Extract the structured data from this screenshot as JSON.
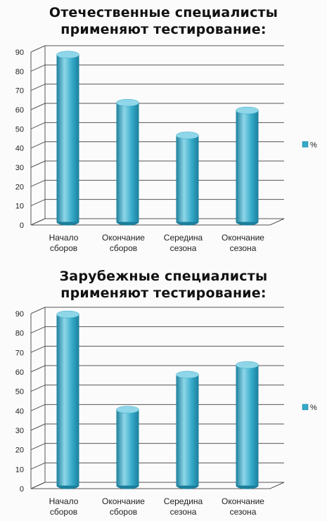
{
  "chart_data": [
    {
      "type": "bar",
      "title": [
        "Отечественные специалисты",
        "применяют тестирование:"
      ],
      "categories": [
        [
          "Начало",
          "сборов"
        ],
        [
          "Окончание",
          "сборов"
        ],
        [
          "Середина",
          "сезона"
        ],
        [
          "Окончание",
          "сезона"
        ]
      ],
      "series": [
        {
          "name": "%",
          "values": [
            87,
            62,
            45,
            58
          ]
        }
      ],
      "ylim": [
        0,
        90
      ],
      "yticks": [
        0,
        10,
        20,
        30,
        40,
        50,
        60,
        70,
        80,
        90
      ],
      "xlabel": "",
      "ylabel": "",
      "grid": true,
      "legend": "right",
      "colors": {
        "bar": "#34a9c8",
        "bar_light": "#8fd6e8",
        "bar_dark": "#1b7f9c",
        "grid": "#555555"
      }
    },
    {
      "type": "bar",
      "title": [
        "Зарубежные специалисты",
        "применяют тестирование:"
      ],
      "categories": [
        [
          "Начало",
          "сборов"
        ],
        [
          "Окончание",
          "сборов"
        ],
        [
          "Середина",
          "сезона"
        ],
        [
          "Окончание",
          "сезона"
        ]
      ],
      "series": [
        {
          "name": "%",
          "values": [
            88,
            39,
            57,
            62
          ]
        }
      ],
      "ylim": [
        0,
        90
      ],
      "yticks": [
        0,
        10,
        20,
        30,
        40,
        50,
        60,
        70,
        80,
        90
      ],
      "xlabel": "",
      "ylabel": "",
      "grid": true,
      "legend": "right",
      "colors": {
        "bar": "#34a9c8",
        "bar_light": "#8fd6e8",
        "bar_dark": "#1b7f9c",
        "grid": "#555555"
      }
    }
  ]
}
